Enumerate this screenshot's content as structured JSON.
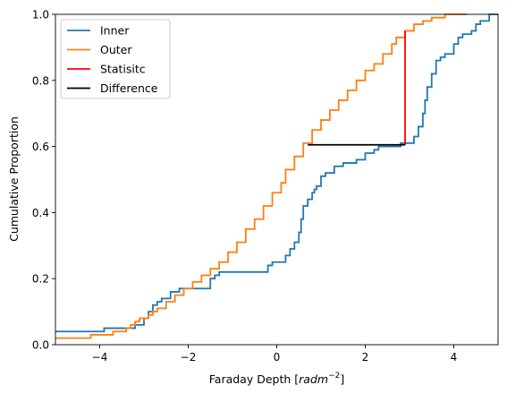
{
  "chart_data": {
    "type": "line",
    "title": "",
    "xlabel": "Faraday Depth [",
    "xlabel_math": "rad",
    "xlabel_math2": "m",
    "xlabel_sup": "−2",
    "xlabel_end": "]",
    "ylabel": "Cumulative Proportion",
    "xlim": [
      -5,
      5
    ],
    "ylim": [
      0,
      1
    ],
    "xticks": [
      -4,
      -2,
      0,
      2,
      4
    ],
    "xtick_labels": [
      "−4",
      "−2",
      "0",
      "2",
      "4"
    ],
    "yticks": [
      0,
      0.2,
      0.4,
      0.6,
      0.8,
      1.0
    ],
    "ytick_labels": [
      "0.0",
      "0.2",
      "0.4",
      "0.6",
      "0.8",
      "1.0"
    ],
    "grid": false,
    "legend_position": "top-left",
    "series": [
      {
        "name": "Inner",
        "color": "#1f77b4",
        "kind": "step",
        "points": [
          [
            -5.0,
            0.04
          ],
          [
            -3.9,
            0.04
          ],
          [
            -3.9,
            0.05
          ],
          [
            -3.2,
            0.05
          ],
          [
            -3.2,
            0.06
          ],
          [
            -3.0,
            0.06
          ],
          [
            -3.0,
            0.08
          ],
          [
            -2.9,
            0.08
          ],
          [
            -2.9,
            0.1
          ],
          [
            -2.8,
            0.1
          ],
          [
            -2.8,
            0.12
          ],
          [
            -2.7,
            0.12
          ],
          [
            -2.7,
            0.13
          ],
          [
            -2.6,
            0.13
          ],
          [
            -2.6,
            0.14
          ],
          [
            -2.4,
            0.14
          ],
          [
            -2.4,
            0.16
          ],
          [
            -2.2,
            0.16
          ],
          [
            -2.2,
            0.17
          ],
          [
            -1.5,
            0.17
          ],
          [
            -1.5,
            0.18
          ],
          [
            -1.5,
            0.18
          ],
          [
            -1.5,
            0.2
          ],
          [
            -1.4,
            0.2
          ],
          [
            -1.4,
            0.21
          ],
          [
            -1.3,
            0.21
          ],
          [
            -1.3,
            0.22
          ],
          [
            -0.2,
            0.22
          ],
          [
            -0.2,
            0.24
          ],
          [
            -0.1,
            0.24
          ],
          [
            -0.1,
            0.25
          ],
          [
            0.2,
            0.25
          ],
          [
            0.2,
            0.27
          ],
          [
            0.3,
            0.27
          ],
          [
            0.3,
            0.29
          ],
          [
            0.4,
            0.29
          ],
          [
            0.4,
            0.31
          ],
          [
            0.5,
            0.31
          ],
          [
            0.5,
            0.34
          ],
          [
            0.55,
            0.34
          ],
          [
            0.55,
            0.38
          ],
          [
            0.6,
            0.38
          ],
          [
            0.6,
            0.42
          ],
          [
            0.7,
            0.42
          ],
          [
            0.7,
            0.44
          ],
          [
            0.8,
            0.44
          ],
          [
            0.8,
            0.46
          ],
          [
            0.85,
            0.46
          ],
          [
            0.85,
            0.47
          ],
          [
            0.9,
            0.47
          ],
          [
            0.9,
            0.48
          ],
          [
            1.0,
            0.48
          ],
          [
            1.0,
            0.51
          ],
          [
            1.1,
            0.51
          ],
          [
            1.1,
            0.52
          ],
          [
            1.3,
            0.52
          ],
          [
            1.3,
            0.54
          ],
          [
            1.5,
            0.54
          ],
          [
            1.5,
            0.55
          ],
          [
            1.8,
            0.55
          ],
          [
            1.8,
            0.56
          ],
          [
            2.0,
            0.56
          ],
          [
            2.0,
            0.58
          ],
          [
            2.2,
            0.58
          ],
          [
            2.2,
            0.59
          ],
          [
            2.3,
            0.59
          ],
          [
            2.3,
            0.6
          ],
          [
            2.8,
            0.6
          ],
          [
            2.8,
            0.61
          ],
          [
            3.1,
            0.61
          ],
          [
            3.1,
            0.63
          ],
          [
            3.2,
            0.63
          ],
          [
            3.2,
            0.66
          ],
          [
            3.3,
            0.66
          ],
          [
            3.3,
            0.7
          ],
          [
            3.35,
            0.7
          ],
          [
            3.35,
            0.74
          ],
          [
            3.4,
            0.74
          ],
          [
            3.4,
            0.78
          ],
          [
            3.5,
            0.78
          ],
          [
            3.5,
            0.82
          ],
          [
            3.6,
            0.82
          ],
          [
            3.6,
            0.86
          ],
          [
            3.7,
            0.86
          ],
          [
            3.7,
            0.87
          ],
          [
            3.8,
            0.87
          ],
          [
            3.8,
            0.88
          ],
          [
            4.0,
            0.88
          ],
          [
            4.0,
            0.91
          ],
          [
            4.1,
            0.91
          ],
          [
            4.1,
            0.93
          ],
          [
            4.2,
            0.93
          ],
          [
            4.2,
            0.94
          ],
          [
            4.4,
            0.94
          ],
          [
            4.4,
            0.95
          ],
          [
            4.5,
            0.95
          ],
          [
            4.5,
            0.97
          ],
          [
            4.6,
            0.97
          ],
          [
            4.6,
            0.98
          ],
          [
            4.8,
            0.98
          ],
          [
            4.8,
            1.0
          ],
          [
            5.0,
            1.0
          ]
        ]
      },
      {
        "name": "Outer",
        "color": "#ff7f0e",
        "kind": "step",
        "points": [
          [
            -5.0,
            0.02
          ],
          [
            -4.2,
            0.02
          ],
          [
            -4.2,
            0.03
          ],
          [
            -3.7,
            0.03
          ],
          [
            -3.7,
            0.04
          ],
          [
            -3.4,
            0.04
          ],
          [
            -3.4,
            0.05
          ],
          [
            -3.3,
            0.05
          ],
          [
            -3.3,
            0.06
          ],
          [
            -3.2,
            0.06
          ],
          [
            -3.2,
            0.07
          ],
          [
            -3.1,
            0.07
          ],
          [
            -3.1,
            0.08
          ],
          [
            -2.9,
            0.08
          ],
          [
            -2.9,
            0.09
          ],
          [
            -2.8,
            0.09
          ],
          [
            -2.8,
            0.1
          ],
          [
            -2.7,
            0.1
          ],
          [
            -2.7,
            0.11
          ],
          [
            -2.5,
            0.11
          ],
          [
            -2.5,
            0.13
          ],
          [
            -2.3,
            0.13
          ],
          [
            -2.3,
            0.15
          ],
          [
            -2.1,
            0.15
          ],
          [
            -2.1,
            0.17
          ],
          [
            -1.9,
            0.17
          ],
          [
            -1.9,
            0.19
          ],
          [
            -1.7,
            0.19
          ],
          [
            -1.7,
            0.21
          ],
          [
            -1.5,
            0.21
          ],
          [
            -1.5,
            0.23
          ],
          [
            -1.3,
            0.23
          ],
          [
            -1.3,
            0.25
          ],
          [
            -1.1,
            0.25
          ],
          [
            -1.1,
            0.28
          ],
          [
            -0.9,
            0.28
          ],
          [
            -0.9,
            0.31
          ],
          [
            -0.7,
            0.31
          ],
          [
            -0.7,
            0.35
          ],
          [
            -0.5,
            0.35
          ],
          [
            -0.5,
            0.38
          ],
          [
            -0.3,
            0.38
          ],
          [
            -0.3,
            0.42
          ],
          [
            -0.1,
            0.42
          ],
          [
            -0.1,
            0.46
          ],
          [
            0.1,
            0.46
          ],
          [
            0.1,
            0.49
          ],
          [
            0.2,
            0.49
          ],
          [
            0.2,
            0.53
          ],
          [
            0.4,
            0.53
          ],
          [
            0.4,
            0.57
          ],
          [
            0.6,
            0.57
          ],
          [
            0.6,
            0.61
          ],
          [
            0.8,
            0.61
          ],
          [
            0.8,
            0.65
          ],
          [
            1.0,
            0.65
          ],
          [
            1.0,
            0.68
          ],
          [
            1.2,
            0.68
          ],
          [
            1.2,
            0.71
          ],
          [
            1.4,
            0.71
          ],
          [
            1.4,
            0.74
          ],
          [
            1.6,
            0.74
          ],
          [
            1.6,
            0.77
          ],
          [
            1.8,
            0.77
          ],
          [
            1.8,
            0.8
          ],
          [
            2.0,
            0.8
          ],
          [
            2.0,
            0.83
          ],
          [
            2.2,
            0.83
          ],
          [
            2.2,
            0.85
          ],
          [
            2.4,
            0.85
          ],
          [
            2.4,
            0.88
          ],
          [
            2.6,
            0.88
          ],
          [
            2.6,
            0.91
          ],
          [
            2.7,
            0.91
          ],
          [
            2.7,
            0.93
          ],
          [
            2.9,
            0.93
          ],
          [
            2.9,
            0.95
          ],
          [
            3.1,
            0.95
          ],
          [
            3.1,
            0.97
          ],
          [
            3.3,
            0.97
          ],
          [
            3.3,
            0.98
          ],
          [
            3.5,
            0.98
          ],
          [
            3.5,
            0.99
          ],
          [
            3.8,
            0.99
          ],
          [
            3.8,
            1.0
          ],
          [
            4.3,
            1.0
          ]
        ]
      },
      {
        "name": "Statisitc",
        "color": "#ff0000",
        "kind": "line",
        "points": [
          [
            2.9,
            0.605
          ],
          [
            2.9,
            0.95
          ]
        ]
      },
      {
        "name": "Difference",
        "color": "#000000",
        "kind": "line",
        "points": [
          [
            0.7,
            0.605
          ],
          [
            2.9,
            0.605
          ]
        ]
      }
    ]
  }
}
